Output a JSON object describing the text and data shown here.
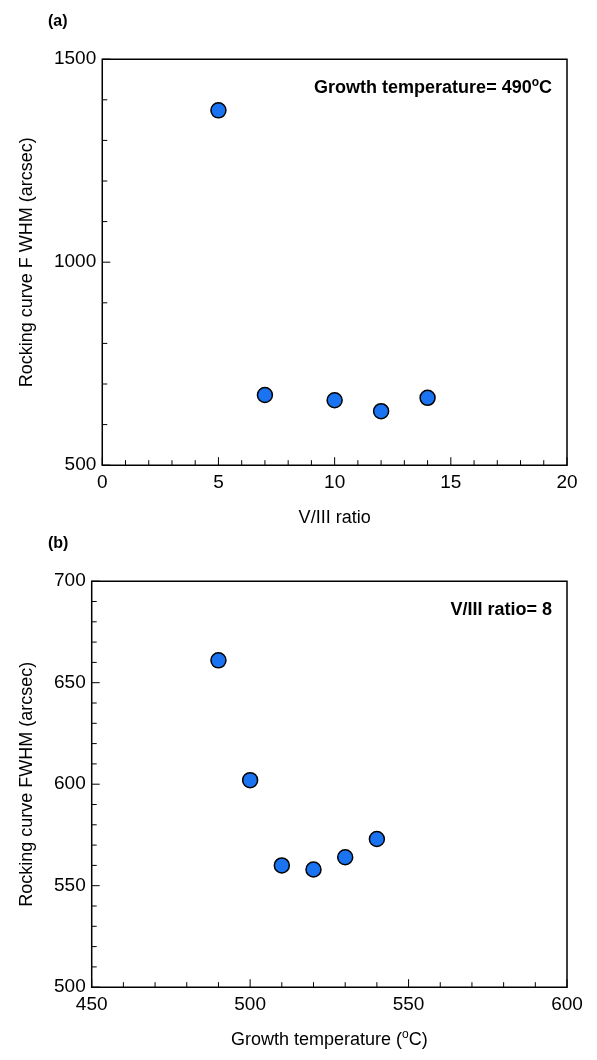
{
  "chart_data": [
    {
      "type": "scatter",
      "title": "(a)",
      "xlabel": "V/III ratio",
      "ylabel": "Rocking curve F WHM (arcsec)",
      "annotations": [
        "Growth temperature= 490$^{o}$C"
      ],
      "x": [
        5,
        7,
        10,
        12,
        14
      ],
      "values": [
        1374,
        673,
        660,
        633,
        666
      ],
      "color": "#1a73f0",
      "marker": "circle",
      "grid": false,
      "xlim": [
        0,
        20
      ],
      "xticks": [
        0,
        {
          "value": 1,
          "label": null
        },
        {
          "value": 2,
          "label": null
        },
        {
          "value": 3,
          "label": null
        },
        {
          "value": 4,
          "label": null
        },
        5,
        {
          "value": 6,
          "label": null
        },
        {
          "value": 7,
          "label": null
        },
        {
          "value": 8,
          "label": null
        },
        {
          "value": 9,
          "label": null
        },
        10,
        {
          "value": 11,
          "label": null
        },
        {
          "value": 12,
          "label": null
        },
        {
          "value": 13,
          "label": null
        },
        {
          "value": 14,
          "label": null
        },
        15,
        {
          "value": 16,
          "label": null
        },
        {
          "value": 17,
          "label": null
        },
        {
          "value": 18,
          "label": null
        },
        {
          "value": 19,
          "label": null
        },
        20
      ],
      "ylim": [
        500,
        1500
      ],
      "yticks": [
        500,
        {
          "value": 600,
          "label": null
        },
        {
          "value": 700,
          "label": null
        },
        {
          "value": 800,
          "label": null
        },
        {
          "value": 900,
          "label": null
        },
        1000,
        {
          "value": 1100,
          "label": null
        },
        {
          "value": 1200,
          "label": null
        },
        {
          "value": 1300,
          "label": null
        },
        {
          "value": 1400,
          "label": null
        },
        1500
      ]
    },
    {
      "type": "scatter",
      "title": "(b)",
      "xlabel": "Growth temperature ($^{o}$C)",
      "ylabel": "Rocking curve FWHM (arcsec)",
      "annotations": [
        "V/III ratio= 8"
      ],
      "x": [
        490,
        500,
        510,
        520,
        530,
        540
      ],
      "values": [
        661,
        602,
        560,
        558,
        564,
        573
      ],
      "color": "#1a73f0",
      "marker": "circle",
      "grid": false,
      "xlim": [
        450,
        600
      ],
      "xticks": [
        450,
        {
          "value": 460,
          "label": null
        },
        {
          "value": 470,
          "label": null
        },
        {
          "value": 480,
          "label": null
        },
        {
          "value": 490,
          "label": null
        },
        500,
        {
          "value": 510,
          "label": null
        },
        {
          "value": 520,
          "label": null
        },
        {
          "value": 530,
          "label": null
        },
        {
          "value": 540,
          "label": null
        },
        550,
        {
          "value": 560,
          "label": null
        },
        {
          "value": 570,
          "label": null
        },
        {
          "value": 580,
          "label": null
        },
        {
          "value": 590,
          "label": null
        },
        600
      ],
      "ylim": [
        500,
        700
      ],
      "yticks": [
        500,
        {
          "value": 510,
          "label": null
        },
        {
          "value": 520,
          "label": null
        },
        {
          "value": 530,
          "label": null
        },
        {
          "value": 540,
          "label": null
        },
        550,
        {
          "value": 560,
          "label": null
        },
        {
          "value": 570,
          "label": null
        },
        {
          "value": 580,
          "label": null
        },
        {
          "value": 590,
          "label": null
        },
        600,
        {
          "value": 610,
          "label": null
        },
        {
          "value": 620,
          "label": null
        },
        {
          "value": 630,
          "label": null
        },
        {
          "value": 640,
          "label": null
        },
        650,
        {
          "value": 660,
          "label": null
        },
        {
          "value": 670,
          "label": null
        },
        {
          "value": 680,
          "label": null
        },
        {
          "value": 690,
          "label": null
        },
        700
      ]
    }
  ]
}
